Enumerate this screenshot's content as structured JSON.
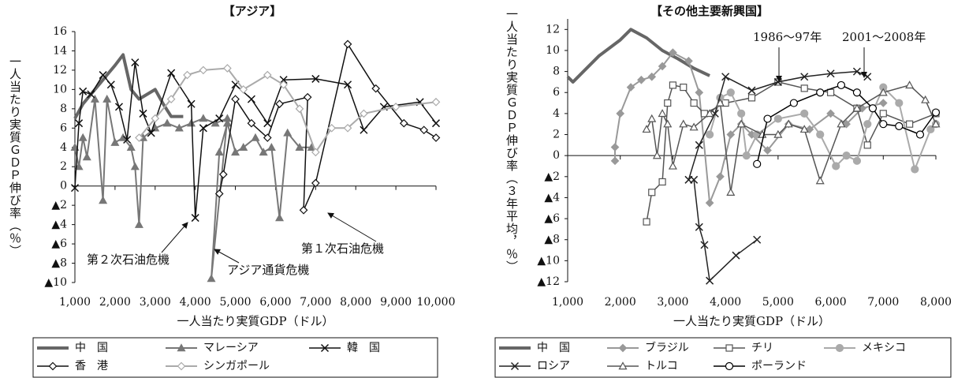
{
  "chart_data": [
    {
      "type": "line",
      "title": "【アジア】",
      "x_label": "一人当たり実質GDP（ドル）",
      "y_label": "一人当たり実質ＧＤＰ伸び率（％）",
      "xlim": [
        1000,
        10000
      ],
      "xticks": [
        {
          "value": 1000,
          "label": "1,000"
        },
        {
          "value": 2000,
          "label": "2,000"
        },
        {
          "value": 3000,
          "label": "3,000"
        },
        {
          "value": 4000,
          "label": "4,000"
        },
        {
          "value": 5000,
          "label": "5,000"
        },
        {
          "value": 6000,
          "label": "6,000"
        },
        {
          "value": 7000,
          "label": "7,000"
        },
        {
          "value": 8000,
          "label": "8,000"
        },
        {
          "value": 9000,
          "label": "9,000"
        },
        {
          "value": 10000,
          "label": "10,000"
        }
      ],
      "ylim": [
        -10,
        16
      ],
      "yticks": [
        16,
        14,
        12,
        10,
        8,
        6,
        4,
        2,
        0,
        {
          "value": -2,
          "label": "▲2"
        },
        {
          "value": -4,
          "label": "▲4"
        },
        {
          "value": -6,
          "label": "▲6"
        },
        {
          "value": -8,
          "label": "▲8"
        },
        {
          "value": -10,
          "label": "▲10"
        }
      ],
      "annotations": [
        "第２次石油危機",
        "アジア通貨危機",
        "第１次石油危機"
      ],
      "series": [
        {
          "name": "中　国",
          "color": "#666666",
          "marker": "none",
          "width": 4,
          "x": [
            1000,
            1200,
            1500,
            1800,
            2000,
            2200,
            2400,
            2600,
            2800,
            3000,
            3200,
            3400,
            3700
          ],
          "values": [
            7,
            8.5,
            10,
            11.5,
            12.5,
            13.6,
            10,
            9,
            9.5,
            10,
            8.5,
            7.2,
            7.2
          ]
        },
        {
          "name": "マレーシア",
          "color": "#777777",
          "marker": "triangle",
          "width": 2,
          "x": [
            1000,
            1100,
            1200,
            1300,
            1500,
            1700,
            1800,
            2000,
            2200,
            2400,
            2500,
            2600,
            2700,
            3000,
            3300,
            3600,
            3900,
            4200,
            4500,
            4800,
            4400,
            4600,
            4800,
            5000,
            5200,
            5500,
            5700,
            5900,
            6100,
            6300,
            6600,
            6900
          ],
          "values": [
            4,
            2,
            5,
            3,
            9,
            -1.5,
            9,
            4.5,
            5,
            4,
            2,
            -4,
            5,
            6,
            6.5,
            6,
            6.5,
            7,
            6.5,
            7,
            -9.6,
            3.5,
            6.5,
            3.5,
            4,
            5,
            3.5,
            4,
            -3.3,
            5.5,
            4,
            4
          ]
        },
        {
          "name": "韓　国",
          "color": "#111111",
          "marker": "x",
          "width": 1.5,
          "x": [
            1000,
            1100,
            1200,
            1400,
            1700,
            1900,
            2100,
            2300,
            2500,
            2700,
            2900,
            3400,
            3900,
            4000,
            4200,
            4600,
            5000,
            5400,
            5800,
            6200,
            7000,
            7800,
            8200,
            8700,
            9600,
            10000
          ],
          "values": [
            -0.2,
            6.5,
            9.8,
            9.5,
            11.5,
            10.5,
            8.2,
            4.8,
            12.8,
            7.5,
            5.5,
            11.7,
            8.5,
            -3.3,
            6,
            7,
            10.5,
            9,
            6.5,
            11,
            11.1,
            10.5,
            5.8,
            8.2,
            8.7,
            6.5
          ]
        },
        {
          "name": "香　港",
          "color": "#111111",
          "marker": "diamond",
          "width": 1.5,
          "x": [
            4600,
            4700,
            5000,
            5400,
            5800,
            6100,
            6800,
            6700,
            7000,
            7800,
            8500,
            9200,
            9700,
            10000
          ],
          "values": [
            -0.8,
            1.2,
            9,
            6.5,
            5,
            8.5,
            9.2,
            -2.5,
            0.3,
            14.7,
            10.1,
            6.5,
            5.8,
            5
          ]
        },
        {
          "name": "シンガポール",
          "color": "#aaaaaa",
          "marker": "diamond",
          "width": 2,
          "x": [
            2600,
            3000,
            3400,
            3800,
            4200,
            4800,
            5200,
            5800,
            6200,
            6600,
            7000,
            7400,
            7800,
            8200,
            9000,
            10000
          ],
          "values": [
            5,
            7,
            9,
            11.5,
            12,
            12.2,
            10,
            11.5,
            10.5,
            8,
            3.5,
            6,
            6,
            7.5,
            8.2,
            8.7
          ]
        }
      ]
    },
    {
      "type": "line",
      "title": "【その他主要新興国】",
      "x_label": "一人当たり実質GDP（ドル）",
      "y_label": "一人当たり実質ＧＤＰ伸び率（３年平均，％）",
      "xlim": [
        1000,
        8000
      ],
      "xticks": [
        {
          "value": 1000,
          "label": "1,000"
        },
        {
          "value": 2000,
          "label": "2,000"
        },
        {
          "value": 3000,
          "label": "3,000"
        },
        {
          "value": 4000,
          "label": "4,000"
        },
        {
          "value": 5000,
          "label": "5,000"
        },
        {
          "value": 6000,
          "label": "6,000"
        },
        {
          "value": 7000,
          "label": "7,000"
        },
        {
          "value": 8000,
          "label": "8,000"
        }
      ],
      "ylim": [
        -12,
        13
      ],
      "yticks": [
        12,
        10,
        8,
        6,
        4,
        2,
        0,
        {
          "value": -2,
          "label": "▲2"
        },
        {
          "value": -4,
          "label": "▲4"
        },
        {
          "value": -6,
          "label": "▲6"
        },
        {
          "value": -8,
          "label": "▲8"
        },
        {
          "value": -10,
          "label": "▲10"
        },
        {
          "value": -12,
          "label": "▲12"
        }
      ],
      "annotations": [
        "1986～97年",
        "2001～2008年"
      ],
      "series": [
        {
          "name": "中　国",
          "color": "#666666",
          "marker": "none",
          "width": 4,
          "x": [
            1000,
            1100,
            1300,
            1600,
            2000,
            2200,
            2500,
            2800,
            3100,
            3400,
            3700
          ],
          "values": [
            7.5,
            7,
            8,
            9.5,
            11,
            12,
            11.2,
            10,
            9.2,
            8.3,
            7.6
          ]
        },
        {
          "name": "ブラジル",
          "color": "#999999",
          "marker": "fdiamond",
          "width": 2,
          "x": [
            1900,
            1900,
            2000,
            2200,
            2400,
            2600,
            2800,
            3000,
            3300,
            3500,
            3700,
            3900,
            4100,
            4300,
            4500,
            4800,
            5200,
            5600,
            6000,
            6300,
            6600,
            7000
          ],
          "values": [
            -0.5,
            0.8,
            4,
            6.5,
            7.2,
            7.5,
            8.5,
            9.8,
            9,
            6,
            -4.5,
            -2,
            2,
            3,
            2,
            0.5,
            3,
            2.5,
            4,
            3,
            4.5,
            5
          ]
        },
        {
          "name": "チリ",
          "color": "#555555",
          "marker": "square",
          "width": 1.5,
          "x": [
            2500,
            2600,
            2800,
            2900,
            3000,
            3200,
            3400,
            3600,
            4000,
            4500,
            5000,
            5500,
            6000,
            6500,
            6700,
            7000,
            7500,
            8000
          ],
          "values": [
            -6.3,
            -3.5,
            -2.5,
            5,
            6.7,
            6.5,
            5,
            4,
            5,
            5.5,
            7,
            6.4,
            6,
            4.5,
            1,
            4,
            3,
            4
          ]
        },
        {
          "name": "メキシコ",
          "color": "#aaaaaa",
          "marker": "fcircle",
          "width": 2,
          "x": [
            3700,
            3900,
            4100,
            4300,
            4400,
            4600,
            5000,
            5500,
            5800,
            6100,
            6300,
            6500,
            6700,
            7000,
            7300,
            7600,
            7900,
            8000
          ],
          "values": [
            2,
            5.5,
            6,
            4,
            0,
            2,
            3.5,
            4,
            2,
            -1,
            0,
            -0.5,
            3,
            6.5,
            5,
            -1.3,
            2.5,
            3
          ]
        },
        {
          "name": "ロシア",
          "color": "#222222",
          "marker": "x",
          "width": 1.5,
          "x": [
            3400,
            3500,
            3600,
            3700,
            4200,
            4600,
            null,
            3300,
            3500,
            3800,
            4000,
            4500,
            5000,
            5500,
            6000,
            6500,
            6700
          ],
          "values": [
            -2.3,
            -6.8,
            -8.5,
            -11.9,
            -9.5,
            -8,
            null,
            -2.3,
            1,
            4,
            7.5,
            6.2,
            7,
            7.5,
            7.8,
            8,
            7.5
          ]
        },
        {
          "name": "トルコ",
          "color": "#555555",
          "marker": "otriangle",
          "width": 1.5,
          "x": [
            2500,
            2600,
            2700,
            2800,
            2900,
            3000,
            3200,
            3400,
            3700,
            3900,
            4100,
            4300,
            4700,
            5000,
            5200,
            5500,
            5800,
            6200,
            6500,
            7000,
            7500,
            7800,
            8000
          ],
          "values": [
            2.5,
            3.5,
            0,
            4,
            3,
            -1,
            3,
            2.7,
            4,
            5,
            -3.5,
            3,
            2,
            2,
            3,
            2.5,
            -2.4,
            3,
            4.5,
            6,
            6.7,
            5.3,
            3
          ]
        },
        {
          "name": "ポーランド",
          "color": "#000000",
          "marker": "circle",
          "width": 1.5,
          "x": [
            4600,
            4800,
            5300,
            5800,
            6200,
            6500,
            6800,
            7000,
            7300,
            7700,
            8000
          ],
          "values": [
            -0.8,
            3.5,
            5,
            6,
            6.7,
            6,
            4.5,
            3,
            2.8,
            2,
            4.1
          ]
        }
      ]
    }
  ]
}
